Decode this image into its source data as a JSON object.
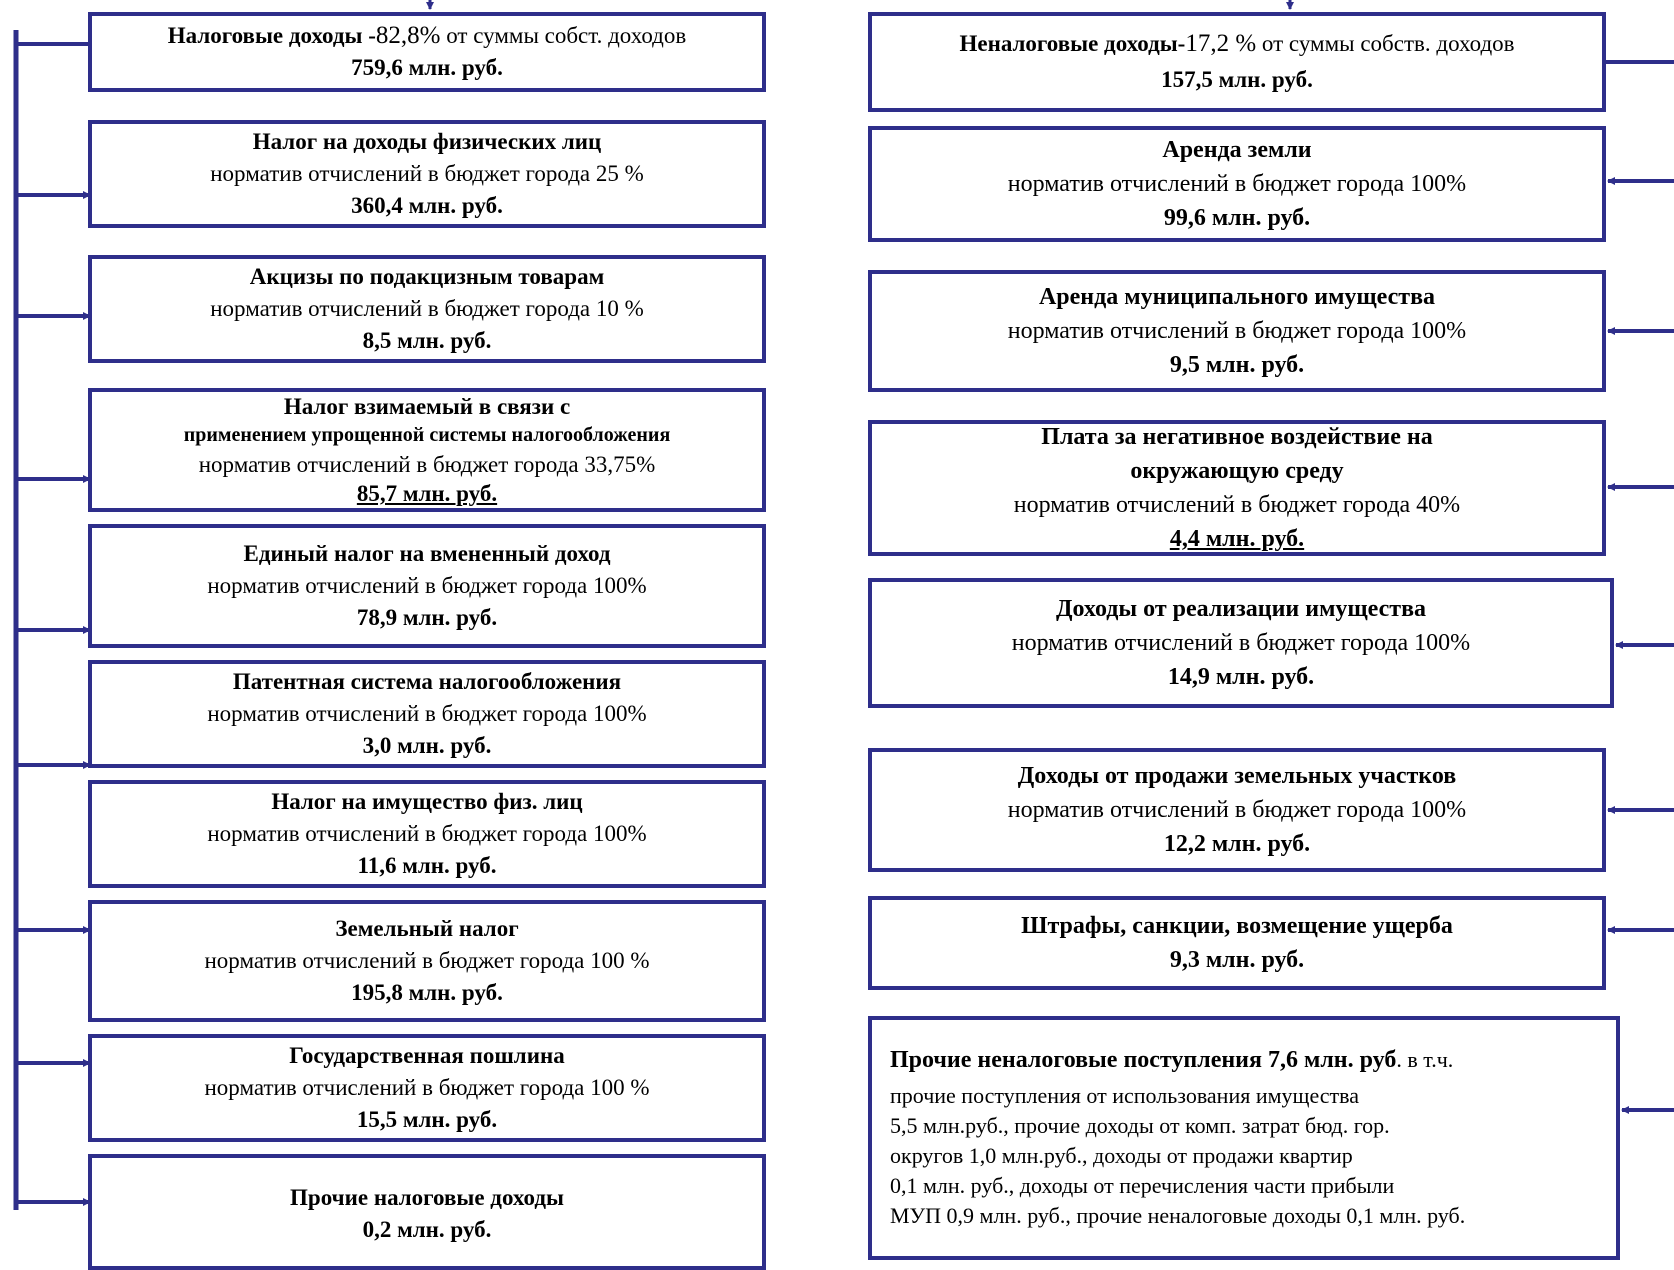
{
  "left": {
    "header": {
      "title": "Налоговые доходы -",
      "percent": "82,8%",
      "percent_suffix": " от суммы собст. доходов",
      "value": "759,6 млн. руб."
    },
    "items": [
      {
        "title": "Налог на доходы физических лиц",
        "norm": "норматив отчислений в бюджет города 25 %",
        "value": "360,4 млн. руб."
      },
      {
        "title": "Акцизы по подакцизным товарам",
        "norm": "норматив отчислений в бюджет города 10 %",
        "value": "8,5 млн. руб."
      },
      {
        "title": "Налог взимаемый в связи с",
        "title2": "применением упрощенной системы налогообложения",
        "norm": "норматив отчислений в бюджет города 33,75%",
        "value": "85,7 млн. руб."
      },
      {
        "title": "Единый налог на вмененный доход",
        "norm": "норматив отчислений в бюджет города 100%",
        "value": "78,9 млн. руб."
      },
      {
        "title": "Патентная система налогообложения",
        "norm": "норматив отчислений в бюджет города 100%",
        "value": "3,0 млн. руб."
      },
      {
        "title": "Налог на имущество физ. лиц",
        "norm": "норматив отчислений в бюджет  города 100%",
        "value": "11,6 млн. руб."
      },
      {
        "title": "Земельный налог",
        "norm": "норматив отчислений в бюджет города 100 %",
        "value": "195,8 млн. руб."
      },
      {
        "title": "Государственная пошлина",
        "norm": "норматив отчислений в бюджет города 100 %",
        "value": "15,5 млн. руб."
      },
      {
        "title": "Прочие налоговые доходы",
        "value": "0,2 млн. руб."
      }
    ]
  },
  "right": {
    "header": {
      "title": "Неналоговые доходы-",
      "percent": "17,2 %",
      "percent_suffix": " от суммы собств. доходов",
      "value": "157,5 млн. руб."
    },
    "items": [
      {
        "title": "Аренда земли",
        "norm": "норматив отчислений в бюджет города 100%",
        "value": "99,6 млн. руб."
      },
      {
        "title": "Аренда муниципального имущества",
        "norm": "норматив отчислений в бюджет города 100%",
        "value": "9,5 млн. руб."
      },
      {
        "title": "Плата за негативное воздействие на",
        "title2": "окружающую среду",
        "norm": "норматив отчислений в бюджет города  40%",
        "value": "4,4 млн. руб."
      },
      {
        "title": "Доходы от реализации имущества",
        "norm": "норматив отчислений в бюджет города 100%",
        "value": "14,9 млн. руб."
      },
      {
        "title": "Доходы от продажи земельных участков",
        "norm": "норматив отчислений в бюджет города 100%",
        "value": "12,2 млн. руб."
      },
      {
        "title": "Штрафы, санкции, возмещение ущерба",
        "value": "9,3 млн. руб."
      }
    ],
    "other": {
      "title": "Прочие неналоговые  поступления 7,6 млн. руб",
      "suffix": ". в т.ч.",
      "lines": [
        "прочие  поступления от использования имущества",
        "5,5 млн.руб., прочие доходы от комп. затрат бюд. гор.",
        "округов 1,0 млн.руб., доходы от продажи квартир",
        "0,1 млн. руб., доходы от перечисления части прибыли",
        "МУП 0,9 млн. руб., прочие неналоговые доходы 0,1 млн. руб."
      ]
    }
  },
  "colors": {
    "border": "#2e2e8a",
    "background": "#ffffff"
  }
}
